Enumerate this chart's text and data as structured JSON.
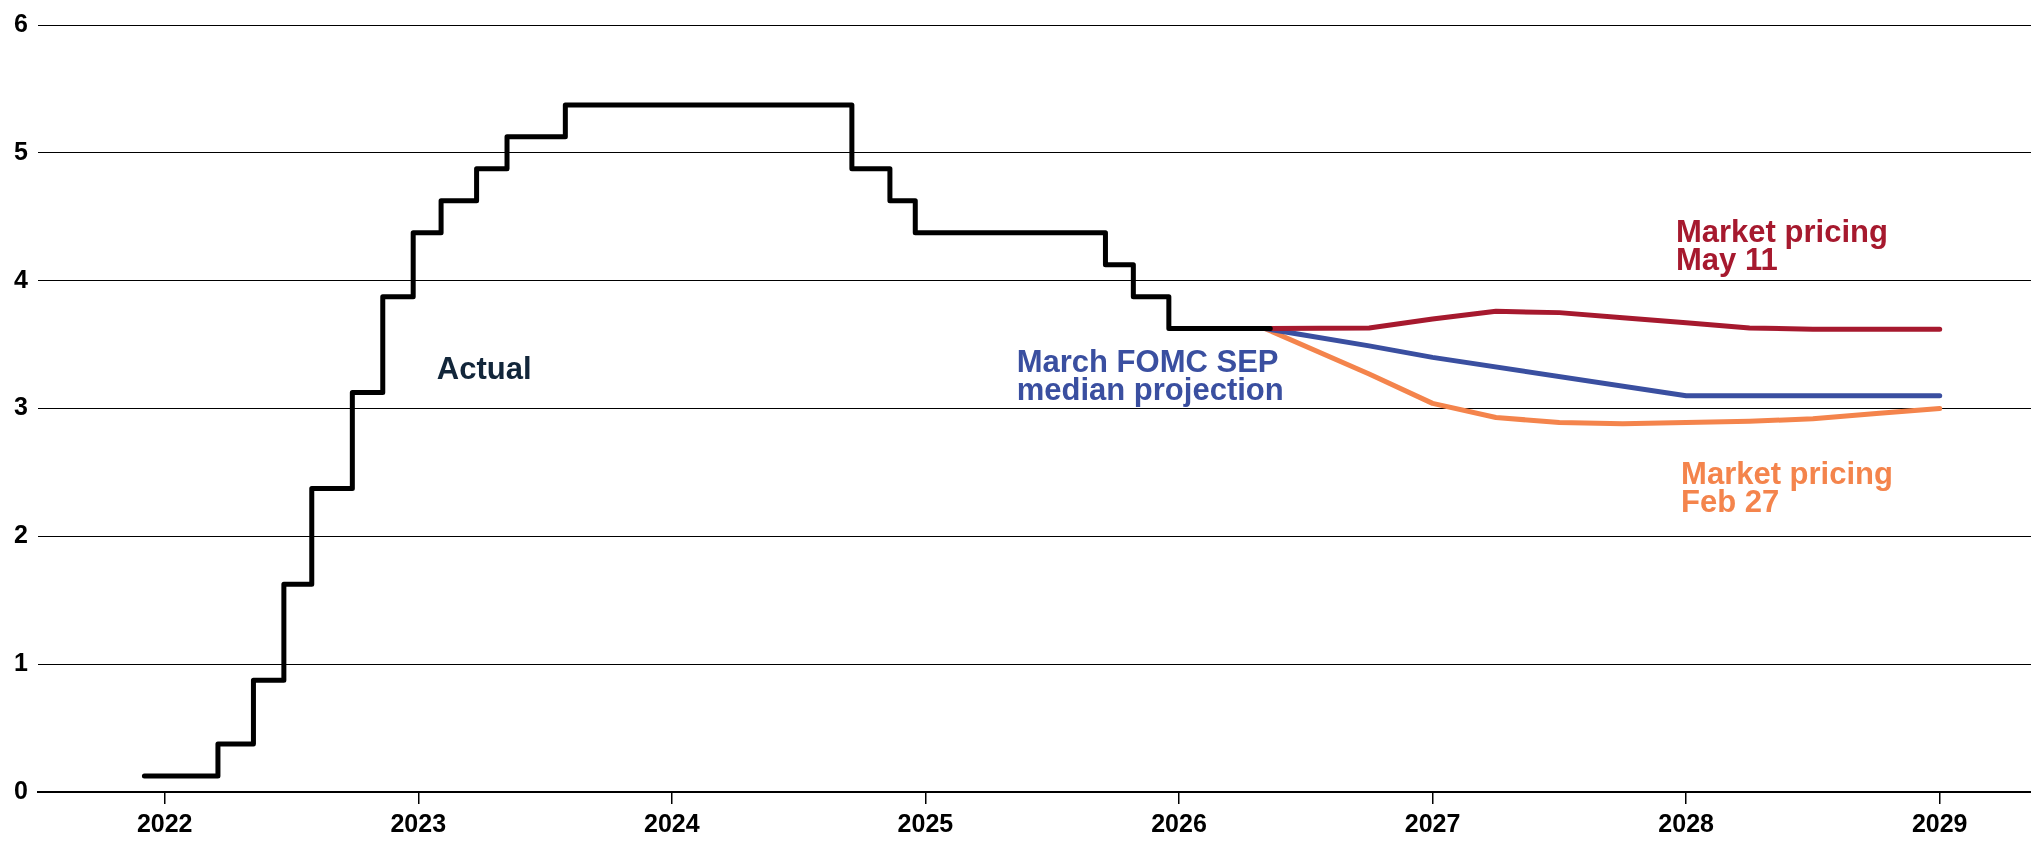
{
  "chart_data": {
    "type": "line",
    "xlim": [
      2021.5,
      2029.36
    ],
    "xticks": [
      2022,
      2023,
      2024,
      2025,
      2026,
      2027,
      2028,
      2029
    ],
    "ylim": [
      0,
      6
    ],
    "yticks": [
      0,
      1,
      2,
      3,
      4,
      5,
      6
    ],
    "grid": "y",
    "legend": false,
    "marker": "none",
    "line_style": "solid",
    "series": [
      {
        "name": "Actual",
        "type": "step",
        "color": "#000000",
        "x": [
          2021.92,
          2022.21,
          2022.35,
          2022.47,
          2022.58,
          2022.74,
          2022.86,
          2022.98,
          2023.09,
          2023.23,
          2023.35,
          2023.58,
          2024.71,
          2024.86,
          2024.96,
          2025.71,
          2025.82,
          2025.96,
          2026.36
        ],
        "values": [
          0.125,
          0.375,
          0.875,
          1.625,
          2.375,
          3.125,
          3.875,
          4.375,
          4.625,
          4.875,
          5.125,
          5.375,
          4.875,
          4.625,
          4.375,
          4.125,
          3.875,
          3.625,
          3.625
        ]
      },
      {
        "name": "Market pricing May 11",
        "color": "#a6192e",
        "x": [
          2026.34,
          2026.75,
          2027.0,
          2027.25,
          2027.5,
          2027.75,
          2028.0,
          2028.25,
          2028.5,
          2029.0
        ],
        "values": [
          3.625,
          3.63,
          3.7,
          3.76,
          3.75,
          3.71,
          3.67,
          3.63,
          3.62,
          3.62
        ]
      },
      {
        "name": "March FOMC SEP median projection",
        "color": "#3a4fa0",
        "x": [
          2026.34,
          2026.75,
          2027.0,
          2028.0,
          2029.0
        ],
        "values": [
          3.625,
          3.49,
          3.4,
          3.1,
          3.1
        ]
      },
      {
        "name": "Market pricing Feb 27",
        "color": "#f4844c",
        "x": [
          2026.34,
          2026.75,
          2027.0,
          2027.25,
          2027.5,
          2027.75,
          2028.0,
          2028.25,
          2028.5,
          2028.75,
          2029.0
        ],
        "values": [
          3.625,
          3.27,
          3.04,
          2.93,
          2.89,
          2.88,
          2.89,
          2.9,
          2.92,
          2.96,
          3.0
        ]
      }
    ]
  }
}
